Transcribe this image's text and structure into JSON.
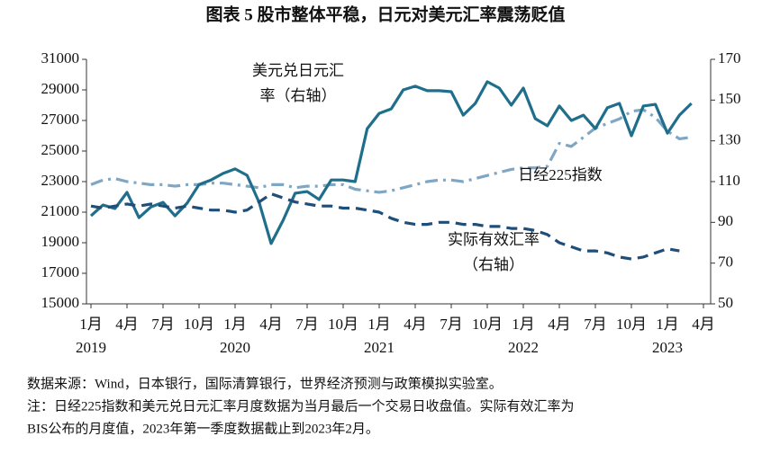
{
  "chart_data": {
    "type": "line",
    "title": "图表 5 股市整体平稳，日元对美元汇率震荡贬值",
    "categories": [
      "1月",
      null,
      null,
      "4月",
      null,
      null,
      "7月",
      null,
      null,
      "10月",
      null,
      null,
      "1月",
      null,
      null,
      "4月",
      null,
      null,
      "7月",
      null,
      null,
      "10月",
      null,
      null,
      "1月",
      null,
      null,
      "4月",
      null,
      null,
      "7月",
      null,
      null,
      "10月",
      null,
      null,
      "1月",
      null,
      null,
      "4月",
      null,
      null,
      "7月",
      null,
      null,
      "10月",
      null,
      null,
      "1月",
      null,
      null,
      "4月"
    ],
    "years": [
      "2019",
      "2020",
      "2021",
      "2022",
      "2023"
    ],
    "ylim": [
      15000,
      31000
    ],
    "yticks": [
      15000,
      17000,
      19000,
      21000,
      23000,
      25000,
      27000,
      29000,
      31000
    ],
    "y2lim": [
      50,
      170
    ],
    "y2ticks": [
      50,
      70,
      90,
      110,
      130,
      150,
      170
    ],
    "series": [
      {
        "label_lines": [
          "日经225指数"
        ],
        "color": "#7fa6c2",
        "dash": "dashdot",
        "axis": "y",
        "values": [
          22800,
          23100,
          23200,
          23000,
          22900,
          22800,
          22800,
          22700,
          22800,
          22800,
          22900,
          22900,
          22800,
          22700,
          22600,
          22800,
          22800,
          22600,
          22700,
          22700,
          22800,
          22800,
          22500,
          22400,
          22300,
          22400,
          22600,
          22800,
          23000,
          23100,
          23100,
          23000,
          23200,
          23400,
          23600,
          23800,
          23900,
          23900,
          24000,
          25500,
          25300,
          25900,
          26500,
          26800,
          27100,
          27600,
          27700,
          27200,
          26300,
          25800,
          25900,
          null
        ]
      },
      {
        "label_lines": [
          "美元兑日元汇",
          "率（右轴）"
        ],
        "color": "#1f6e8c",
        "dash": "solid",
        "axis": "y2",
        "values": [
          93.2,
          98.5,
          96.8,
          104.7,
          92.3,
          97.6,
          99.8,
          93.2,
          99.4,
          108.6,
          110.8,
          114.0,
          116.2,
          113.1,
          99.8,
          79.6,
          91.0,
          104.3,
          105.1,
          101.2,
          110.8,
          110.8,
          110.0,
          136.0,
          143.5,
          145.7,
          155.0,
          156.8,
          154.6,
          154.6,
          154.1,
          142.6,
          148.4,
          159.0,
          155.9,
          147.5,
          155.9,
          140.9,
          137.4,
          147.1,
          140.0,
          142.6,
          136.0,
          146.2,
          148.4,
          132.5,
          147.1,
          147.9,
          133.8,
          142.6,
          148.4,
          null
        ]
      },
      {
        "label_lines": [
          "实际有效汇率",
          "（右轴）"
        ],
        "color": "#1f4e79",
        "dash": "dashed",
        "axis": "y2",
        "values": [
          98,
          97,
          98,
          99,
          98,
          99,
          98,
          97,
          98,
          97,
          96,
          96,
          95,
          96,
          100,
          104,
          102,
          100,
          99,
          98,
          98,
          97,
          97,
          96,
          95,
          92,
          90,
          89,
          89,
          90,
          90,
          89,
          89,
          88,
          88,
          87,
          87,
          86,
          84,
          80,
          78,
          76,
          76,
          75,
          73,
          72,
          73,
          75,
          77,
          76,
          null,
          null
        ]
      }
    ],
    "footnotes": [
      "数据来源：Wind，日本银行，国际清算银行，世界经济预测与政策模拟实验室。",
      "注：日经225指数和美元兑日元汇率月度数据为当月最后一个交易日收盘值。实际有效汇率为",
      "BIS公布的月度值，2023年第一季度数据截止到2023年2月。"
    ]
  }
}
